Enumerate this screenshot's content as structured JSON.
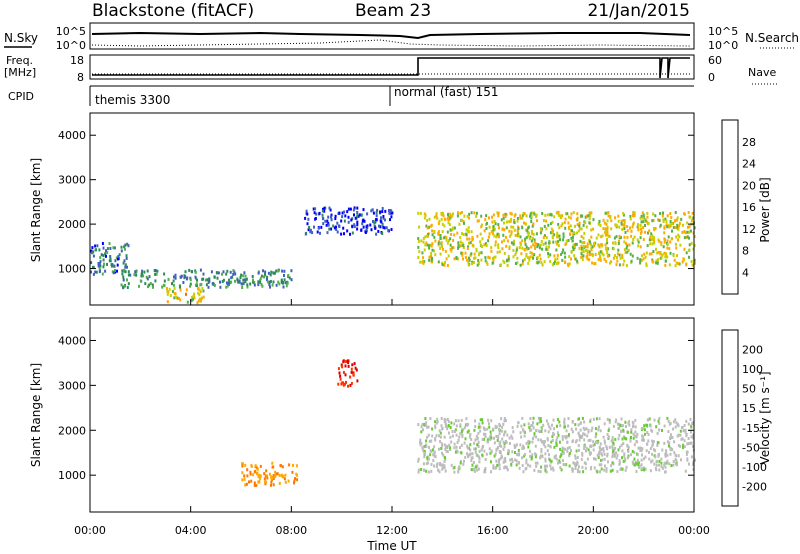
{
  "header": {
    "station": "Blackstone (fitACF)",
    "beam": "Beam 23",
    "date": "21/Jan/2015"
  },
  "summary_panels": {
    "nsky_label": "N.Sky",
    "nsky_ticks": [
      "10^5",
      "10^0"
    ],
    "nsearch_label": "N.Search",
    "freq_label": "Freq.",
    "freq_units": "[MHz]",
    "freq_ticks": [
      "18",
      "8"
    ],
    "nave_label": "Nave",
    "nave_ticks": [
      "60",
      "0"
    ],
    "cpid_label": "CPID",
    "cpid_modes": [
      {
        "name": "themis 3300",
        "start_hour": 0
      },
      {
        "name": "normal (fast) 151",
        "start_hour": 12.5
      }
    ]
  },
  "chart_data": [
    {
      "type": "heatmap",
      "panel": "power",
      "ylabel": "Slant Range [km]",
      "xlim_hours": [
        0,
        24
      ],
      "ylim_km": [
        180,
        4500
      ],
      "yticks": [
        1000,
        2000,
        3000,
        4000
      ],
      "colorbar_label": "Power [dB]",
      "colorbar_ticks": [
        "4",
        "8",
        "12",
        "16",
        "20",
        "24",
        "28"
      ],
      "colorbar_colors": [
        "#0000ff",
        "#4060c0",
        "#2e8b57",
        "#55b04a",
        "#c8d000",
        "#ffaa00",
        "#ff6600",
        "#ff0000"
      ],
      "scatter_bands": [
        {
          "from_hour": 0,
          "to_hour": 1.5,
          "range_km": [
            900,
            1600
          ],
          "level_db": 10
        },
        {
          "from_hour": 1.2,
          "to_hour": 8.0,
          "range_km": [
            600,
            1000
          ],
          "level_db": 12
        },
        {
          "from_hour": 3.0,
          "to_hour": 4.5,
          "range_km": [
            250,
            600
          ],
          "level_db": 22
        },
        {
          "from_hour": 8.5,
          "to_hour": 12.0,
          "range_km": [
            1800,
            2400
          ],
          "level_db": 6
        },
        {
          "from_hour": 13.0,
          "to_hour": 24.0,
          "range_km": [
            1100,
            2300
          ],
          "level_db": 20
        }
      ]
    },
    {
      "type": "heatmap",
      "panel": "velocity",
      "ylabel": "Slant Range [km]",
      "xlabel": "Time UT",
      "xlim_hours": [
        0,
        24
      ],
      "xticks": [
        "00:00",
        "04:00",
        "08:00",
        "12:00",
        "16:00",
        "20:00",
        "00:00"
      ],
      "ylim_km": [
        180,
        4500
      ],
      "yticks": [
        1000,
        2000,
        3000,
        4000
      ],
      "colorbar_label": "Velocity [m s⁻¹]",
      "colorbar_ticks": [
        "200",
        "100",
        "50",
        "15",
        "-15",
        "-50",
        "-100",
        "-200"
      ],
      "colorbar_colors": [
        "#0000cc",
        "#1a4fb5",
        "#2e8b57",
        "#66cc33",
        "#bdbdbd",
        "#ffaa00",
        "#ff7700",
        "#ff3300",
        "#dd0000"
      ],
      "scatter_bands": [
        {
          "from_hour": 6.0,
          "to_hour": 8.2,
          "range_km": [
            800,
            1300
          ],
          "velocity": -50
        },
        {
          "from_hour": 9.8,
          "to_hour": 10.6,
          "range_km": [
            3000,
            3600
          ],
          "velocity": -200
        },
        {
          "from_hour": 13.0,
          "to_hour": 24.0,
          "range_km": [
            1100,
            2300
          ],
          "velocity": 0
        }
      ]
    }
  ]
}
